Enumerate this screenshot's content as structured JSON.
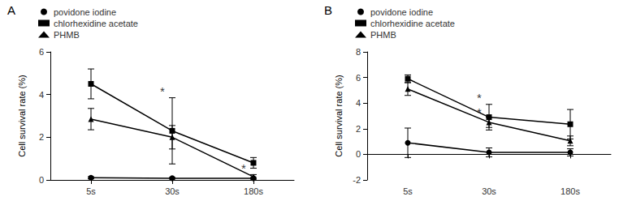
{
  "chart_data": [
    {
      "type": "line",
      "title": "A",
      "ylabel": "Cell survival rate (%)",
      "categories": [
        "5s",
        "30s",
        "180s"
      ],
      "series": [
        {
          "name": "povidone iodine",
          "marker": "circle",
          "color": "#000000",
          "values": [
            0.1,
            0.08,
            0.08
          ],
          "yerr": [
            0.05,
            0.04,
            0.04
          ]
        },
        {
          "name": "chlorhexidine acetate",
          "marker": "square",
          "color": "#000000",
          "values": [
            4.5,
            2.3,
            0.8
          ],
          "yerr": [
            0.7,
            1.55,
            0.25
          ]
        },
        {
          "name": "PHMB",
          "marker": "triangle",
          "color": "#000000",
          "values": [
            2.85,
            2.0,
            0.15
          ],
          "yerr": [
            0.5,
            0.55,
            0.1
          ]
        }
      ],
      "annotations": [
        {
          "text": "*",
          "x": "30s",
          "y": 3.9
        },
        {
          "text": "*",
          "x": "180s",
          "y": 0.3
        }
      ],
      "ylim": [
        0,
        6
      ],
      "yticks": [
        0,
        2,
        4,
        6
      ],
      "grid": false,
      "legend": "top",
      "color": "#000000"
    },
    {
      "type": "line",
      "title": "B",
      "ylabel": "Cell survival rate (%)",
      "categories": [
        "5s",
        "30s",
        "180s"
      ],
      "series": [
        {
          "name": "povidone iodine",
          "marker": "circle",
          "color": "#000000",
          "values": [
            0.9,
            0.15,
            0.15
          ],
          "yerr": [
            1.15,
            0.35,
            0.28
          ]
        },
        {
          "name": "chlorhexidine acetate",
          "marker": "square",
          "color": "#000000",
          "values": [
            5.9,
            2.9,
            2.35
          ],
          "yerr": [
            0.3,
            1.0,
            1.15
          ]
        },
        {
          "name": "PHMB",
          "marker": "triangle",
          "color": "#000000",
          "values": [
            5.1,
            2.5,
            1.05
          ],
          "yerr": [
            0.5,
            0.4,
            0.38
          ]
        }
      ],
      "annotations": [
        {
          "text": "*",
          "x": "30s",
          "y": 4.0
        },
        {
          "text": "*",
          "x": "30s",
          "y": 2.9
        }
      ],
      "ylim": [
        -2,
        8
      ],
      "yticks": [
        -2,
        0,
        2,
        4,
        6,
        8
      ],
      "grid": false,
      "legend": "top",
      "color": "#000000"
    }
  ]
}
